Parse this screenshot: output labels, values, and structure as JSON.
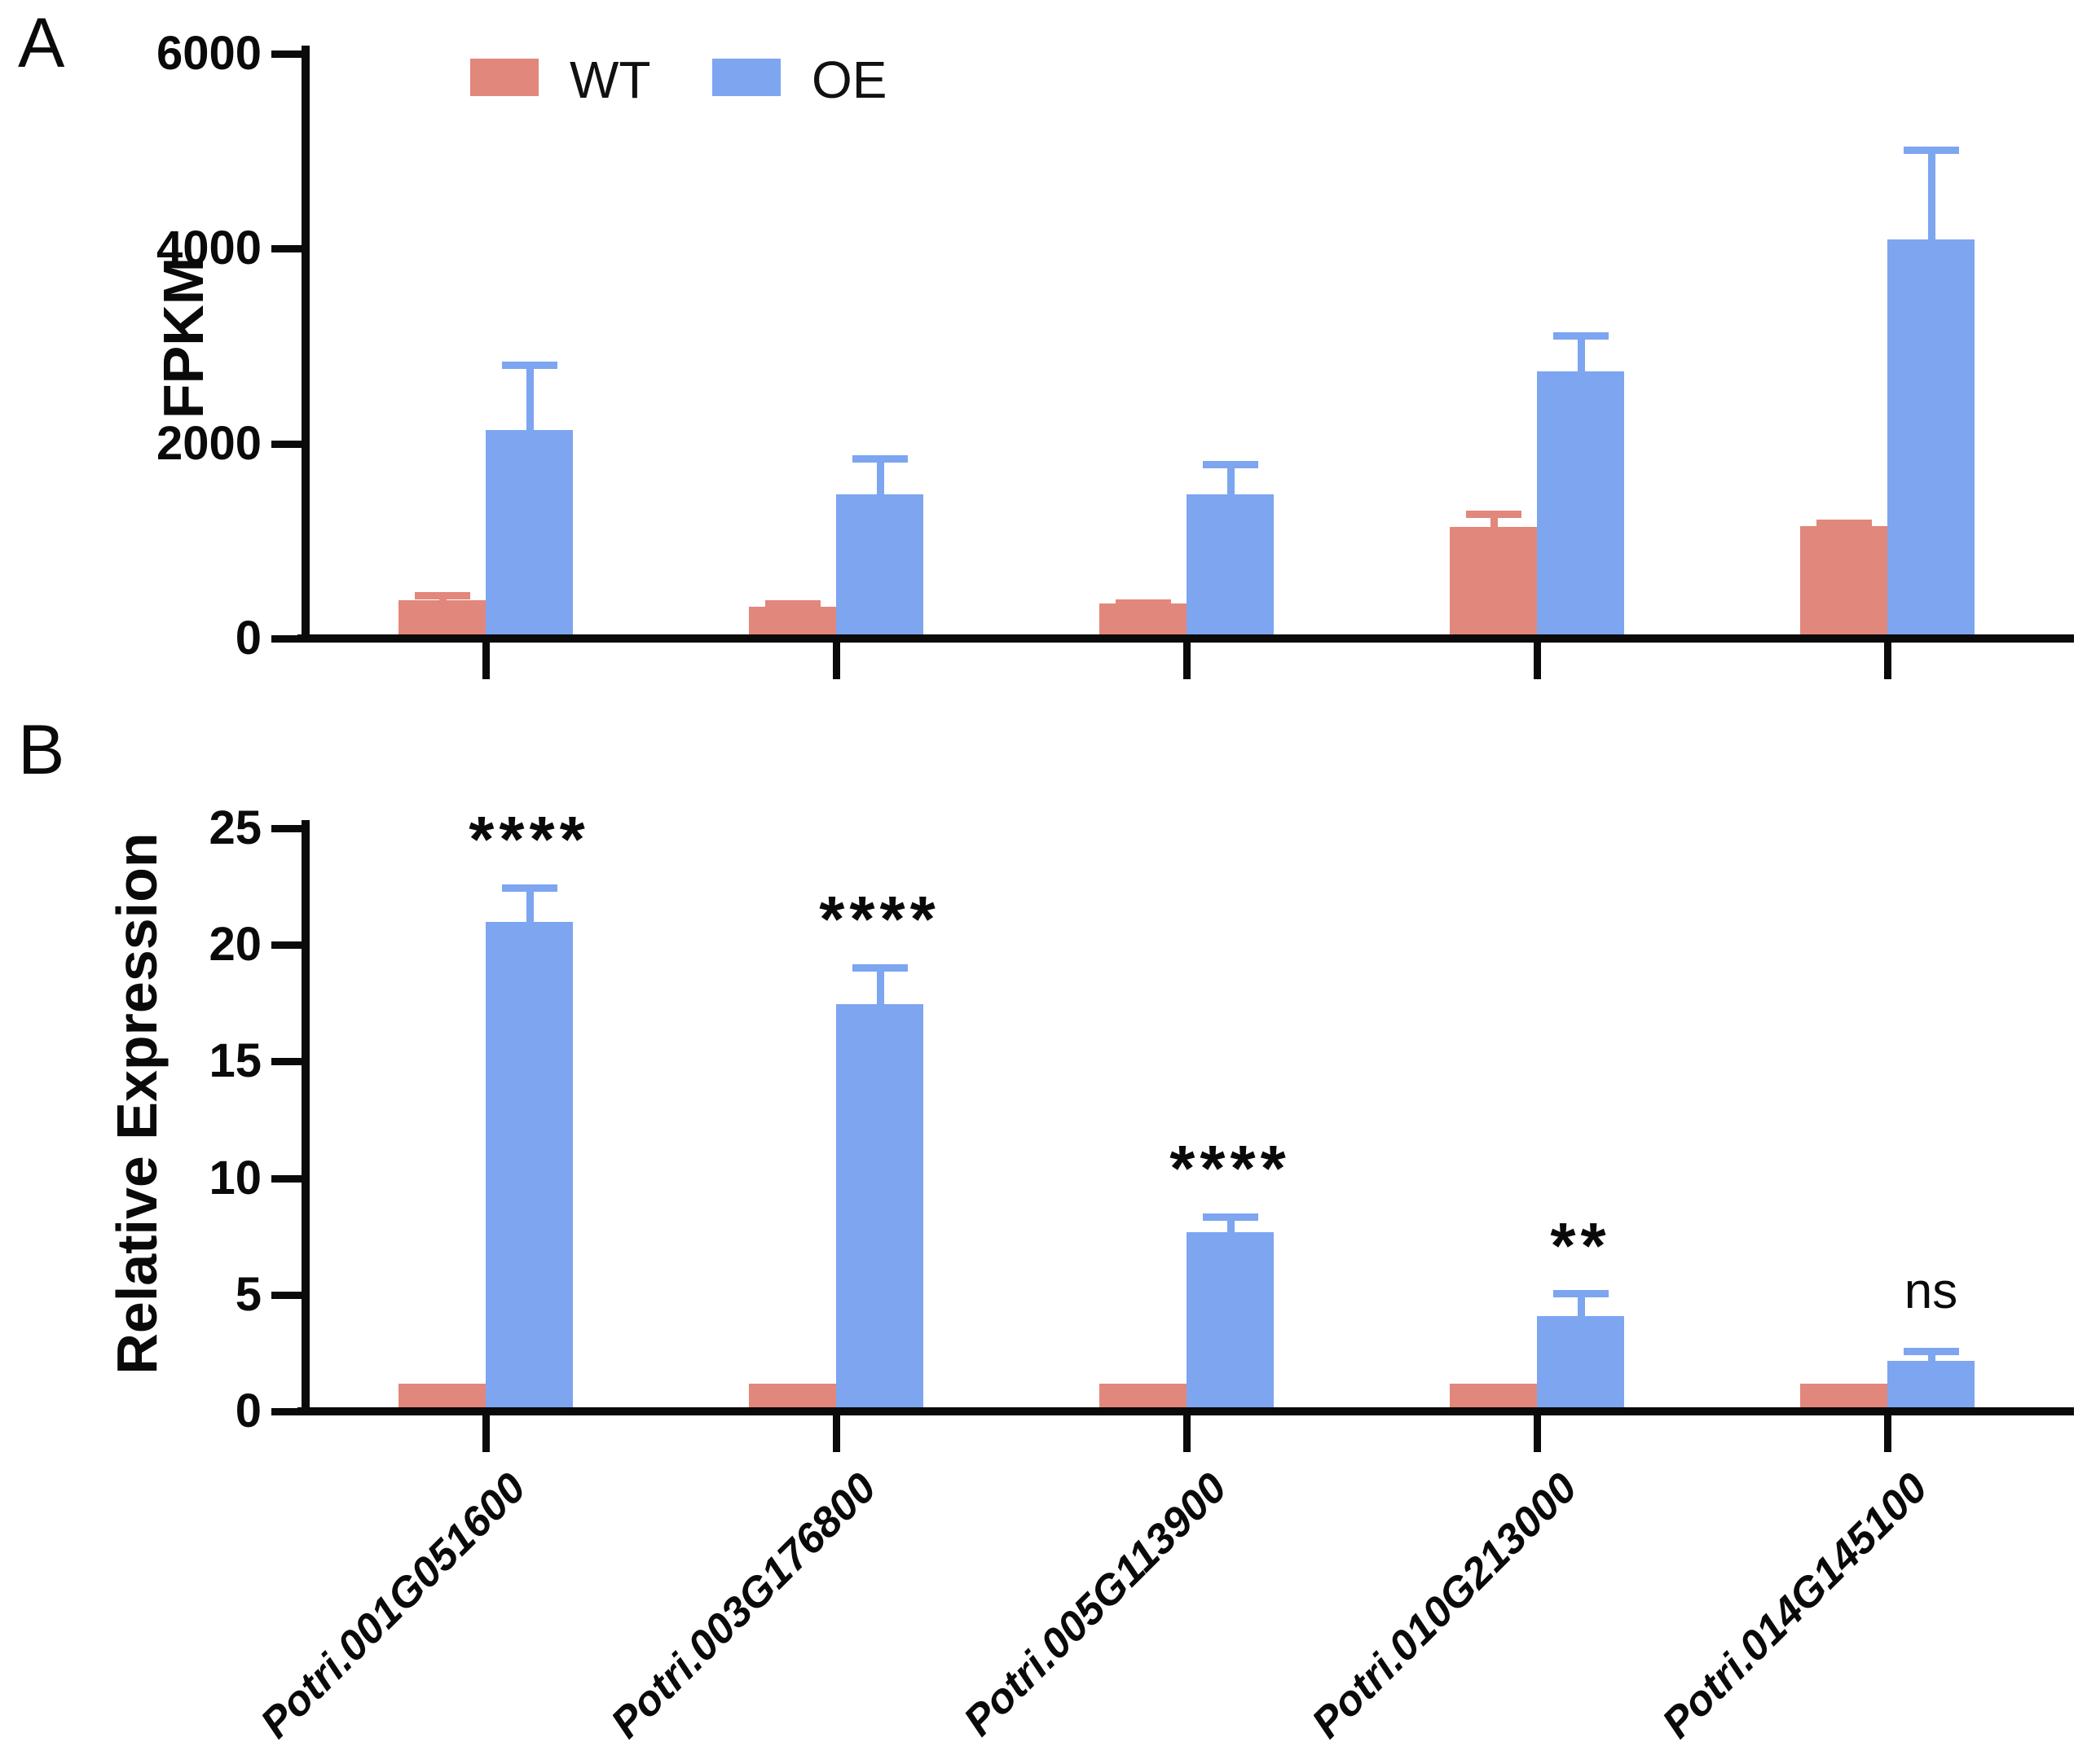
{
  "panels": {
    "a_letter": "A",
    "b_letter": "B"
  },
  "legend": {
    "items": [
      {
        "label": "WT",
        "color": "#E2877B"
      },
      {
        "label": "OE",
        "color": "#7DA5F0"
      }
    ]
  },
  "colors": {
    "wt": "#E2877B",
    "oe": "#7DA5F0",
    "axis": "#0a0a0a"
  },
  "chart_data": [
    {
      "type": "bar",
      "panel": "A",
      "title": "",
      "xlabel": "",
      "ylabel": "FPKM",
      "ylim": [
        0,
        6000
      ],
      "yticks": [
        0,
        2000,
        4000,
        6000
      ],
      "grid": false,
      "legend_position": "top-left-inside",
      "categories": [
        "Potri.001G051600",
        "Potri.003G176800",
        "Potri.005G113900",
        "Potri.010G213000",
        "Potri.014G145100"
      ],
      "show_x_labels": false,
      "series": [
        {
          "name": "WT",
          "color": "#E2877B",
          "values": [
            350,
            280,
            320,
            1100,
            1110
          ],
          "errors": [
            80,
            70,
            40,
            170,
            70
          ]
        },
        {
          "name": "OE",
          "color": "#7DA5F0",
          "values": [
            2100,
            1440,
            1440,
            2700,
            4050
          ],
          "errors": [
            700,
            400,
            340,
            400,
            950
          ]
        }
      ],
      "significance": [
        "",
        "",
        "",
        "",
        ""
      ]
    },
    {
      "type": "bar",
      "panel": "B",
      "title": "",
      "xlabel": "",
      "ylabel": "Relative Expression",
      "ylim": [
        0,
        25
      ],
      "yticks": [
        0,
        5,
        10,
        15,
        20,
        25
      ],
      "grid": false,
      "categories": [
        "Potri.001G051600",
        "Potri.003G176800",
        "Potri.005G113900",
        "Potri.010G213000",
        "Potri.014G145100"
      ],
      "show_x_labels": true,
      "series": [
        {
          "name": "WT",
          "color": "#E2877B",
          "values": [
            1,
            1,
            1,
            1,
            1
          ],
          "errors": [
            0,
            0,
            0,
            0,
            0
          ]
        },
        {
          "name": "OE",
          "color": "#7DA5F0",
          "values": [
            20.8,
            17.3,
            7.5,
            3.9,
            2.0
          ],
          "errors": [
            1.6,
            1.7,
            0.8,
            1.1,
            0.55
          ]
        }
      ],
      "significance": [
        "****",
        "****",
        "****",
        "**",
        "ns"
      ]
    }
  ]
}
